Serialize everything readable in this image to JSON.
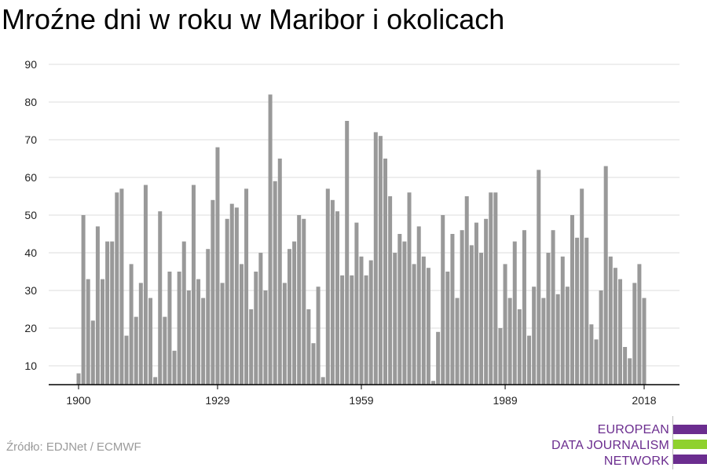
{
  "title": "Mroźne dni w roku w Maribor i okolicach",
  "source": "Źródło: EDJNet / ECMWF",
  "logo": {
    "lines": [
      "EUROPEAN",
      "DATA JOURNALISM",
      "NETWORK"
    ],
    "colors": {
      "purple": "#6b2d8f",
      "green": "#8fd12e"
    }
  },
  "colors": {
    "bar": "#999999",
    "grid": "#dddddd",
    "axis": "#000000"
  },
  "chart_data": {
    "type": "bar",
    "title": "Mroźne dni w roku w Maribor i okolicach",
    "xlabel": "",
    "ylabel": "",
    "x_start": 1900,
    "x_end": 2018,
    "xticks": [
      1900,
      1929,
      1959,
      1989,
      2018
    ],
    "yticks": [
      10,
      20,
      30,
      40,
      50,
      60,
      70,
      80,
      90
    ],
    "ylim": [
      5,
      90
    ],
    "grid": true,
    "values": [
      8,
      50,
      33,
      22,
      47,
      33,
      43,
      43,
      56,
      57,
      18,
      37,
      23,
      32,
      58,
      28,
      7,
      51,
      23,
      35,
      14,
      35,
      43,
      30,
      58,
      33,
      28,
      41,
      54,
      68,
      32,
      49,
      53,
      52,
      37,
      57,
      25,
      35,
      40,
      30,
      82,
      59,
      65,
      32,
      41,
      43,
      50,
      49,
      25,
      16,
      31,
      7,
      57,
      54,
      51,
      34,
      75,
      34,
      48,
      39,
      34,
      38,
      72,
      71,
      65,
      55,
      40,
      45,
      43,
      56,
      37,
      47,
      39,
      36,
      6,
      19,
      50,
      35,
      45,
      28,
      46,
      55,
      42,
      48,
      40,
      49,
      56,
      56,
      20,
      37,
      28,
      43,
      25,
      46,
      18,
      31,
      62,
      28,
      40,
      46,
      29,
      39,
      31,
      50,
      44,
      57,
      44,
      21,
      17,
      30,
      63,
      39,
      36,
      33,
      15,
      12,
      32,
      37,
      28
    ]
  }
}
